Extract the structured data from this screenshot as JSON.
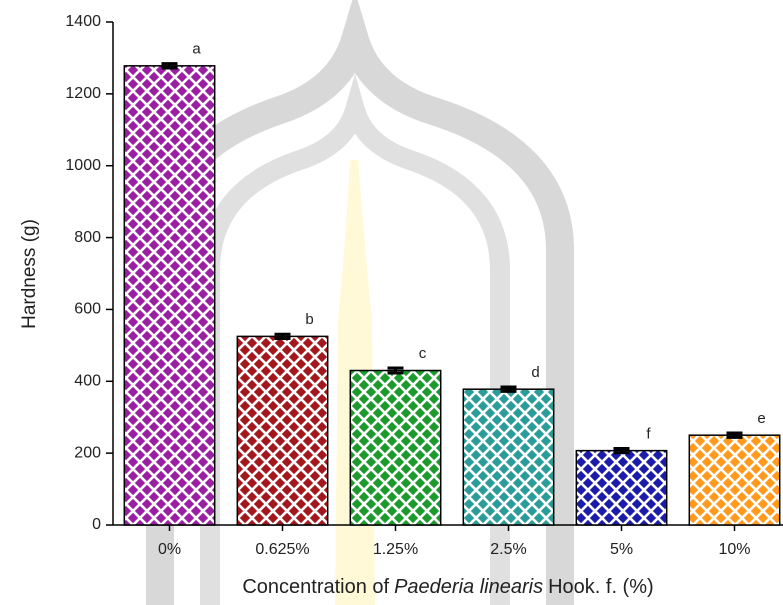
{
  "chart_data": {
    "type": "bar",
    "ylabel": "Hardness (g)",
    "xlabel": [
      "Concentration of",
      "Paederia linearis",
      "Hook. f. (%)"
    ],
    "categories": [
      "0%",
      "0.625%",
      "1.25%",
      "2.5%",
      "5%",
      "10%"
    ],
    "values": [
      1278,
      525,
      430,
      378,
      207,
      250
    ],
    "errors": [
      6,
      6,
      7,
      6,
      6,
      6
    ],
    "letters": [
      "a",
      "b",
      "c",
      "d",
      "f",
      "e"
    ],
    "colors": [
      "#9b1fa3",
      "#a3181c",
      "#1c9a2c",
      "#2a9c9a",
      "#1c1caa",
      "#ff9a1c"
    ],
    "ylim": [
      0,
      1400
    ],
    "yticks": [
      0,
      200,
      400,
      600,
      800,
      1000,
      1200,
      1400
    ]
  }
}
